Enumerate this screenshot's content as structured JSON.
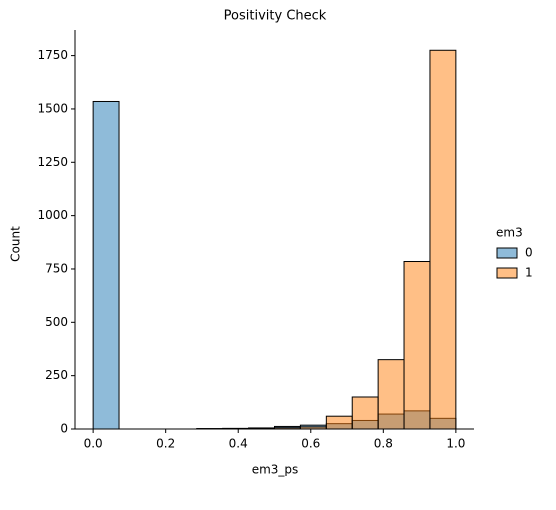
{
  "chart_data": {
    "type": "histogram",
    "title": "Positivity Check",
    "xlabel": "em3_ps",
    "ylabel": "Count",
    "legend_title": "em3",
    "legend": "outside right",
    "bins": [
      0,
      0.0714,
      0.1429,
      0.2143,
      0.2857,
      0.3571,
      0.4286,
      0.5,
      0.5714,
      0.6429,
      0.7143,
      0.7857,
      0.8571,
      0.9286,
      1
    ],
    "series": [
      {
        "name": "0",
        "color": "#1f77b4",
        "values": [
          1535,
          0,
          0,
          0,
          2,
          3,
          5,
          12,
          18,
          25,
          40,
          70,
          85,
          50
        ]
      },
      {
        "name": "1",
        "color": "#ff7f0e",
        "values": [
          0,
          0,
          0,
          0,
          1,
          2,
          4,
          6,
          10,
          60,
          150,
          325,
          785,
          1775
        ]
      }
    ],
    "xlim": [
      -0.05,
      1.05
    ],
    "ylim": [
      0,
      1870
    ],
    "xticks": [
      {
        "value": 0,
        "label": "0.0"
      },
      {
        "value": 0.2,
        "label": "0.2"
      },
      {
        "value": 0.4,
        "label": "0.4"
      },
      {
        "value": 0.6,
        "label": "0.6"
      },
      {
        "value": 0.8,
        "label": "0.8"
      },
      {
        "value": 1,
        "label": "1.0"
      }
    ],
    "yticks": [
      0,
      250,
      500,
      750,
      1000,
      1250,
      1500,
      1750
    ]
  }
}
